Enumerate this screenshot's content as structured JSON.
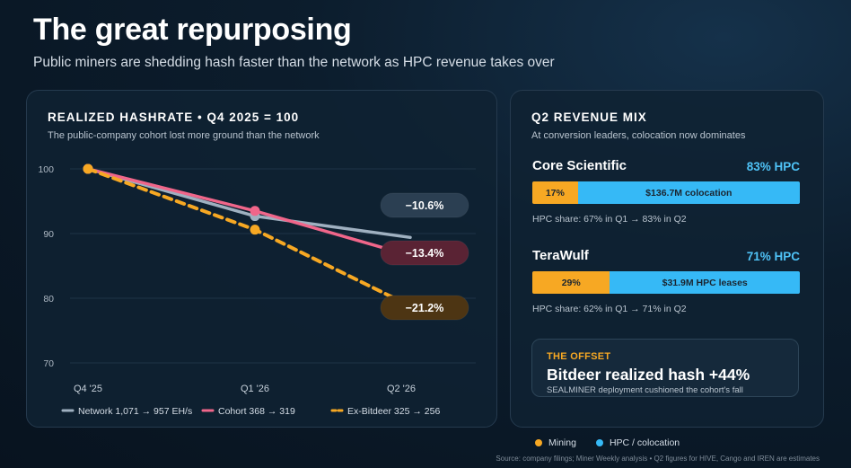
{
  "header": {
    "title": "The great repurposing",
    "subtitle": "Public miners are shedding hash faster than the network as HPC revenue takes over"
  },
  "chart_data": {
    "type": "line",
    "title": "REALIZED HASHRATE • Q4 2025 = 100",
    "subtitle": "The public-company cohort lost more ground than the network",
    "categories": [
      "Q4 '25",
      "Q1 '26",
      "Q2 '26"
    ],
    "y_ticks": [
      100,
      90,
      80,
      70
    ],
    "ylim": [
      70,
      100
    ],
    "grid": true,
    "legend_position": "bottom",
    "series": [
      {
        "name": "Network 1,071 → 957 EH/s",
        "values": [
          100,
          92.7,
          89.4
        ],
        "color": "#9fb0c0",
        "dashed": false,
        "end_label": "−10.6%",
        "label_bg": "#2b3f52"
      },
      {
        "name": "Cohort 368 → 319",
        "values": [
          100,
          93.5,
          86.6
        ],
        "color": "#f0668a",
        "dashed": false,
        "end_label": "−13.4%",
        "label_bg": "#5a2334"
      },
      {
        "name": "Ex-Bitdeer 325 → 256",
        "values": [
          100,
          90.6,
          78.8
        ],
        "color": "#f7a823",
        "dashed": true,
        "end_label": "−21.2%",
        "label_bg": "#4d3513"
      }
    ]
  },
  "revenue": {
    "title": "Q2 REVENUE MIX",
    "subtitle": "At conversion leaders, colocation now dominates",
    "companies": [
      {
        "name": "Core Scientific",
        "pct_label": "83% HPC",
        "mining_share": 17,
        "mining_label": "17%",
        "hpc_label": "$136.7M colocation",
        "note": "HPC share: 67% in Q1 → 83% in Q2"
      },
      {
        "name": "TeraWulf",
        "pct_label": "71% HPC",
        "mining_share": 29,
        "mining_label": "29%",
        "hpc_label": "$31.9M HPC leases",
        "note": "HPC share: 62% in Q1 → 71% in Q2"
      }
    ]
  },
  "offset": {
    "label": "THE OFFSET",
    "headline": "Bitdeer realized hash +44%",
    "note": "SEALMINER deployment cushioned the cohort's fall"
  },
  "legend": {
    "mining": "Mining",
    "hpc": "HPC / colocation",
    "mining_color": "#f7a823",
    "hpc_color": "#36b9f6"
  },
  "source": "Source: company filings; Miner Weekly analysis • Q2 figures for HIVE, Cango and IREN are estimates"
}
